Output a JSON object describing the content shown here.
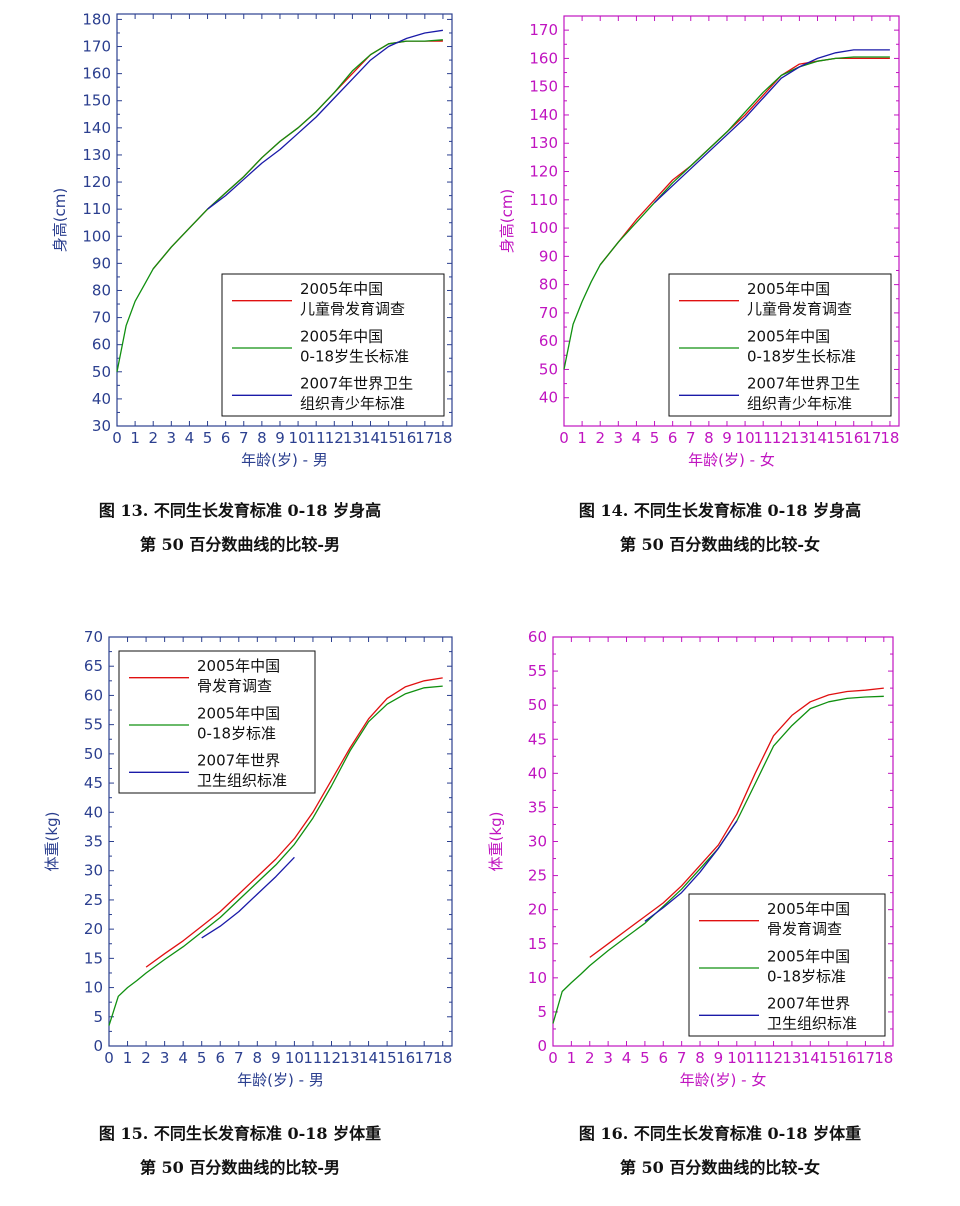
{
  "colors": {
    "blue_axis": "#2b3f8f",
    "magenta_axis": "#c014c0",
    "red": "#e01010",
    "green": "#109010",
    "navy": "#1a1aa8"
  },
  "chart_data": [
    {
      "type": "line",
      "caption_line1": "图 13.  不同生长发育标准 0-18 岁身高",
      "caption_line2": "第 50 百分数曲线的比较-男",
      "xlabel": "年龄(岁) - 男",
      "ylabel": "身高(cm)",
      "axis_color": "#2b3f8f",
      "xlim": [
        0,
        18.5
      ],
      "ylim": [
        30,
        182
      ],
      "xticks": [
        0,
        1,
        2,
        3,
        4,
        5,
        6,
        7,
        8,
        9,
        10,
        11,
        12,
        13,
        14,
        15,
        16,
        17,
        18
      ],
      "yticks": [
        30,
        40,
        50,
        60,
        70,
        80,
        90,
        100,
        110,
        120,
        130,
        140,
        150,
        160,
        170,
        180
      ],
      "legend_position": "bottom-right",
      "series": [
        {
          "name": "2005年中国\n儿童骨发育调查",
          "color": "#e01010",
          "x": [
            2,
            3,
            4,
            5,
            6,
            7,
            8,
            9,
            10,
            11,
            12,
            13,
            14,
            15,
            16,
            17,
            18
          ],
          "y": [
            88,
            96,
            103,
            110,
            116,
            122,
            129,
            135,
            140,
            146,
            153,
            160,
            167,
            171,
            172,
            172,
            172
          ]
        },
        {
          "name": "2005年中国\n0-18岁生长标准",
          "color": "#109010",
          "x": [
            0,
            0.5,
            1,
            1.5,
            2,
            3,
            4,
            5,
            6,
            7,
            8,
            9,
            10,
            11,
            12,
            13,
            14,
            15,
            16,
            17,
            18
          ],
          "y": [
            50,
            67,
            76,
            82,
            88,
            96,
            103,
            110,
            116,
            122,
            129,
            135,
            140,
            146,
            153,
            161,
            167,
            171,
            172,
            172,
            172.5
          ]
        },
        {
          "name": "2007年世界卫生\n组织青少年标准",
          "color": "#1a1aa8",
          "x": [
            5,
            6,
            7,
            8,
            9,
            10,
            11,
            12,
            13,
            14,
            15,
            16,
            17,
            18
          ],
          "y": [
            110,
            115,
            121,
            127,
            132,
            138,
            144,
            151,
            158,
            165,
            170,
            173,
            175,
            176
          ]
        }
      ]
    },
    {
      "type": "line",
      "caption_line1": "图 14.  不同生长发育标准 0-18 岁身高",
      "caption_line2": "第 50 百分数曲线的比较-女",
      "xlabel": "年龄(岁) - 女",
      "ylabel": "身高(cm)",
      "axis_color": "#c014c0",
      "xlim": [
        0,
        18.5
      ],
      "ylim": [
        30,
        175
      ],
      "xticks": [
        0,
        1,
        2,
        3,
        4,
        5,
        6,
        7,
        8,
        9,
        10,
        11,
        12,
        13,
        14,
        15,
        16,
        17,
        18
      ],
      "yticks": [
        40,
        50,
        60,
        70,
        80,
        90,
        100,
        110,
        120,
        130,
        140,
        150,
        160,
        170
      ],
      "legend_position": "bottom-right",
      "series": [
        {
          "name": "2005年中国\n儿童骨发育调查",
          "color": "#e01010",
          "x": [
            2,
            3,
            4,
            5,
            6,
            7,
            8,
            9,
            10,
            11,
            12,
            13,
            14,
            15,
            16,
            17,
            18
          ],
          "y": [
            87,
            95,
            103,
            110,
            117,
            122,
            128,
            134,
            140,
            147,
            154,
            158,
            159,
            160,
            160,
            160,
            160
          ]
        },
        {
          "name": "2005年中国\n0-18岁生长标准",
          "color": "#109010",
          "x": [
            0,
            0.5,
            1,
            1.5,
            2,
            3,
            4,
            5,
            6,
            7,
            8,
            9,
            10,
            11,
            12,
            13,
            14,
            15,
            16,
            17,
            18
          ],
          "y": [
            50,
            66,
            74,
            81,
            87,
            95,
            102,
            109,
            116,
            122,
            128,
            134,
            141,
            148,
            154,
            157,
            159,
            160,
            160.5,
            160.5,
            160.5
          ]
        },
        {
          "name": "2007年世界卫生\n组织青少年标准",
          "color": "#1a1aa8",
          "x": [
            5,
            6,
            7,
            8,
            9,
            10,
            11,
            12,
            13,
            14,
            15,
            16,
            17,
            18
          ],
          "y": [
            109,
            115,
            121,
            127,
            133,
            139,
            146,
            153,
            157,
            160,
            162,
            163,
            163,
            163
          ]
        }
      ]
    },
    {
      "type": "line",
      "caption_line1": "图 15.  不同生长发育标准 0-18 岁体重",
      "caption_line2": "第 50 百分数曲线的比较-男",
      "xlabel": "年龄(岁) - 男",
      "ylabel": "体重(kg)",
      "axis_color": "#2b3f8f",
      "xlim": [
        0,
        18.5
      ],
      "ylim": [
        0,
        70
      ],
      "xticks": [
        0,
        1,
        2,
        3,
        4,
        5,
        6,
        7,
        8,
        9,
        10,
        11,
        12,
        13,
        14,
        15,
        16,
        17,
        18
      ],
      "yticks": [
        0,
        5,
        10,
        15,
        20,
        25,
        30,
        35,
        40,
        45,
        50,
        55,
        60,
        65,
        70
      ],
      "legend_position": "top-left",
      "series": [
        {
          "name": "2005年中国\n骨发育调查",
          "color": "#e01010",
          "x": [
            2,
            3,
            4,
            5,
            6,
            7,
            8,
            9,
            10,
            11,
            12,
            13,
            14,
            15,
            16,
            17,
            18
          ],
          "y": [
            13.5,
            15.8,
            18,
            20.5,
            23,
            26,
            29,
            32,
            35.5,
            40,
            45.5,
            51,
            56,
            59.5,
            61.5,
            62.5,
            63
          ]
        },
        {
          "name": "2005年中国\n0-18岁标准",
          "color": "#109010",
          "x": [
            0,
            0.5,
            1,
            1.5,
            2,
            3,
            4,
            5,
            6,
            7,
            8,
            9,
            10,
            11,
            12,
            13,
            14,
            15,
            16,
            17,
            18
          ],
          "y": [
            3.5,
            8.5,
            10,
            11.2,
            12.5,
            14.8,
            17,
            19.5,
            22,
            25,
            28,
            31,
            34.5,
            39,
            44.5,
            50.5,
            55.5,
            58.5,
            60.3,
            61.3,
            61.6
          ]
        },
        {
          "name": "2007年世界\n卫生组织标准",
          "color": "#1a1aa8",
          "x": [
            5,
            6,
            7,
            8,
            9,
            10
          ],
          "y": [
            18.5,
            20.5,
            23,
            26,
            29,
            32.3
          ]
        }
      ]
    },
    {
      "type": "line",
      "caption_line1": "图 16.  不同生长发育标准 0-18 岁体重",
      "caption_line2": "第 50 百分数曲线的比较-女",
      "xlabel": "年龄(岁) - 女",
      "ylabel": "体重(kg)",
      "axis_color": "#c014c0",
      "xlim": [
        0,
        18.5
      ],
      "ylim": [
        0,
        60
      ],
      "xticks": [
        0,
        1,
        2,
        3,
        4,
        5,
        6,
        7,
        8,
        9,
        10,
        11,
        12,
        13,
        14,
        15,
        16,
        17,
        18
      ],
      "yticks": [
        0,
        5,
        10,
        15,
        20,
        25,
        30,
        35,
        40,
        45,
        50,
        55,
        60
      ],
      "legend_position": "bottom-right",
      "series": [
        {
          "name": "2005年中国\n骨发育调查",
          "color": "#e01010",
          "x": [
            2,
            3,
            4,
            5,
            6,
            7,
            8,
            9,
            10,
            11,
            12,
            13,
            14,
            15,
            16,
            17,
            18
          ],
          "y": [
            13,
            15,
            17,
            19,
            21,
            23.5,
            26.5,
            29.5,
            34,
            40,
            45.5,
            48.5,
            50.5,
            51.5,
            52,
            52.2,
            52.5
          ]
        },
        {
          "name": "2005年中国\n0-18岁标准",
          "color": "#109010",
          "x": [
            0,
            0.5,
            1,
            1.5,
            2,
            3,
            4,
            5,
            6,
            7,
            8,
            9,
            10,
            11,
            12,
            13,
            14,
            15,
            16,
            17,
            18
          ],
          "y": [
            3.3,
            8,
            9.3,
            10.5,
            11.8,
            14,
            16,
            18,
            20.5,
            23,
            26,
            29,
            33,
            38.5,
            44,
            47,
            49.5,
            50.5,
            51,
            51.2,
            51.3
          ]
        },
        {
          "name": "2007年世界\n卫生组织标准",
          "color": "#1a1aa8",
          "x": [
            5,
            6,
            7,
            8,
            9,
            10
          ],
          "y": [
            18.3,
            20.3,
            22.5,
            25.5,
            29,
            33
          ]
        }
      ]
    }
  ]
}
